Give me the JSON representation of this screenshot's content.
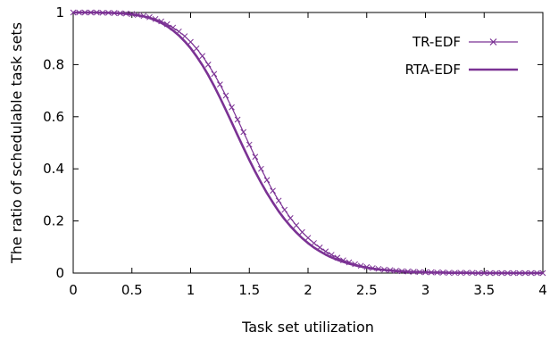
{
  "chart_data": {
    "type": "line",
    "xlabel": "Task set utilization",
    "ylabel": "The ratio of schedulable task sets",
    "xlim": [
      0,
      4
    ],
    "ylim": [
      0,
      1
    ],
    "xticks": [
      "0",
      "0.5",
      "1",
      "1.5",
      "2",
      "2.5",
      "3",
      "3.5",
      "4"
    ],
    "yticks": [
      "0",
      "0.2",
      "0.4",
      "0.6",
      "0.8",
      "1"
    ],
    "grid": false,
    "legend_position": "top-right",
    "series": [
      {
        "name": "TR-EDF",
        "color": "#7b3294",
        "marker": "x",
        "x": [
          0.0,
          0.05,
          0.1,
          0.15,
          0.2,
          0.25,
          0.3,
          0.35,
          0.4,
          0.45,
          0.5,
          0.55,
          0.6,
          0.65,
          0.7,
          0.75,
          0.8,
          0.85,
          0.9,
          0.95,
          1.0,
          1.05,
          1.1,
          1.15,
          1.2,
          1.25,
          1.3,
          1.35,
          1.4,
          1.45,
          1.5,
          1.55,
          1.6,
          1.65,
          1.7,
          1.75,
          1.8,
          1.85,
          1.9,
          1.95,
          2.0,
          2.05,
          2.1,
          2.15,
          2.2,
          2.25,
          2.3,
          2.35,
          2.4,
          2.45,
          2.5,
          2.55,
          2.6,
          2.65,
          2.7,
          2.75,
          2.8,
          2.85,
          2.9,
          2.95,
          3.0,
          3.05,
          3.1,
          3.15,
          3.2,
          3.25,
          3.3,
          3.35,
          3.4,
          3.45,
          3.5,
          3.55,
          3.6,
          3.65,
          3.7,
          3.75,
          3.8,
          3.85,
          3.9,
          3.95,
          4.0
        ],
        "y": [
          1.0,
          1.0,
          1.0,
          1.0,
          1.0,
          0.999,
          0.999,
          0.998,
          0.997,
          0.996,
          0.994,
          0.991,
          0.987,
          0.982,
          0.975,
          0.966,
          0.955,
          0.942,
          0.927,
          0.909,
          0.887,
          0.862,
          0.833,
          0.8,
          0.764,
          0.724,
          0.681,
          0.636,
          0.589,
          0.541,
          0.493,
          0.446,
          0.4,
          0.357,
          0.316,
          0.278,
          0.243,
          0.211,
          0.183,
          0.157,
          0.135,
          0.115,
          0.098,
          0.083,
          0.07,
          0.059,
          0.049,
          0.041,
          0.034,
          0.028,
          0.023,
          0.019,
          0.016,
          0.013,
          0.011,
          0.009,
          0.007,
          0.006,
          0.005,
          0.004,
          0.003,
          0.003,
          0.002,
          0.002,
          0.001,
          0.001,
          0.001,
          0.001,
          0.001,
          0.0,
          0.0,
          0.0,
          0.0,
          0.0,
          0.0,
          0.0,
          0.0,
          0.0,
          0.0,
          0.0,
          0.0
        ]
      },
      {
        "name": "RTA-EDF",
        "color": "#7b3294",
        "marker": "none",
        "x": [
          0.0,
          0.05,
          0.1,
          0.15,
          0.2,
          0.25,
          0.3,
          0.35,
          0.4,
          0.45,
          0.5,
          0.55,
          0.6,
          0.65,
          0.7,
          0.75,
          0.8,
          0.85,
          0.9,
          0.95,
          1.0,
          1.05,
          1.1,
          1.15,
          1.2,
          1.25,
          1.3,
          1.35,
          1.4,
          1.45,
          1.5,
          1.55,
          1.6,
          1.65,
          1.7,
          1.75,
          1.8,
          1.85,
          1.9,
          1.95,
          2.0,
          2.05,
          2.1,
          2.15,
          2.2,
          2.25,
          2.3,
          2.35,
          2.4,
          2.45,
          2.5,
          2.55,
          2.6,
          2.65,
          2.7,
          2.75,
          2.8,
          2.85,
          2.9,
          2.95,
          3.0,
          3.05,
          3.1,
          3.15,
          3.2,
          3.25,
          3.3,
          3.35,
          3.4,
          3.45,
          3.5,
          3.55,
          3.6,
          3.65,
          3.7,
          3.75,
          3.8,
          3.85,
          3.9,
          3.95,
          4.0
        ],
        "y": [
          1.0,
          1.0,
          1.0,
          1.0,
          1.0,
          0.999,
          0.999,
          0.998,
          0.997,
          0.995,
          0.993,
          0.989,
          0.985,
          0.979,
          0.97,
          0.96,
          0.947,
          0.931,
          0.912,
          0.889,
          0.863,
          0.832,
          0.798,
          0.76,
          0.718,
          0.673,
          0.626,
          0.578,
          0.529,
          0.481,
          0.434,
          0.389,
          0.347,
          0.307,
          0.271,
          0.237,
          0.207,
          0.18,
          0.156,
          0.134,
          0.115,
          0.098,
          0.084,
          0.071,
          0.06,
          0.051,
          0.043,
          0.036,
          0.03,
          0.025,
          0.021,
          0.017,
          0.014,
          0.012,
          0.01,
          0.008,
          0.007,
          0.005,
          0.004,
          0.004,
          0.003,
          0.002,
          0.002,
          0.002,
          0.001,
          0.001,
          0.001,
          0.001,
          0.0,
          0.0,
          0.0,
          0.0,
          0.0,
          0.0,
          0.0,
          0.0,
          0.0,
          0.0,
          0.0,
          0.0,
          0.0
        ]
      }
    ]
  }
}
